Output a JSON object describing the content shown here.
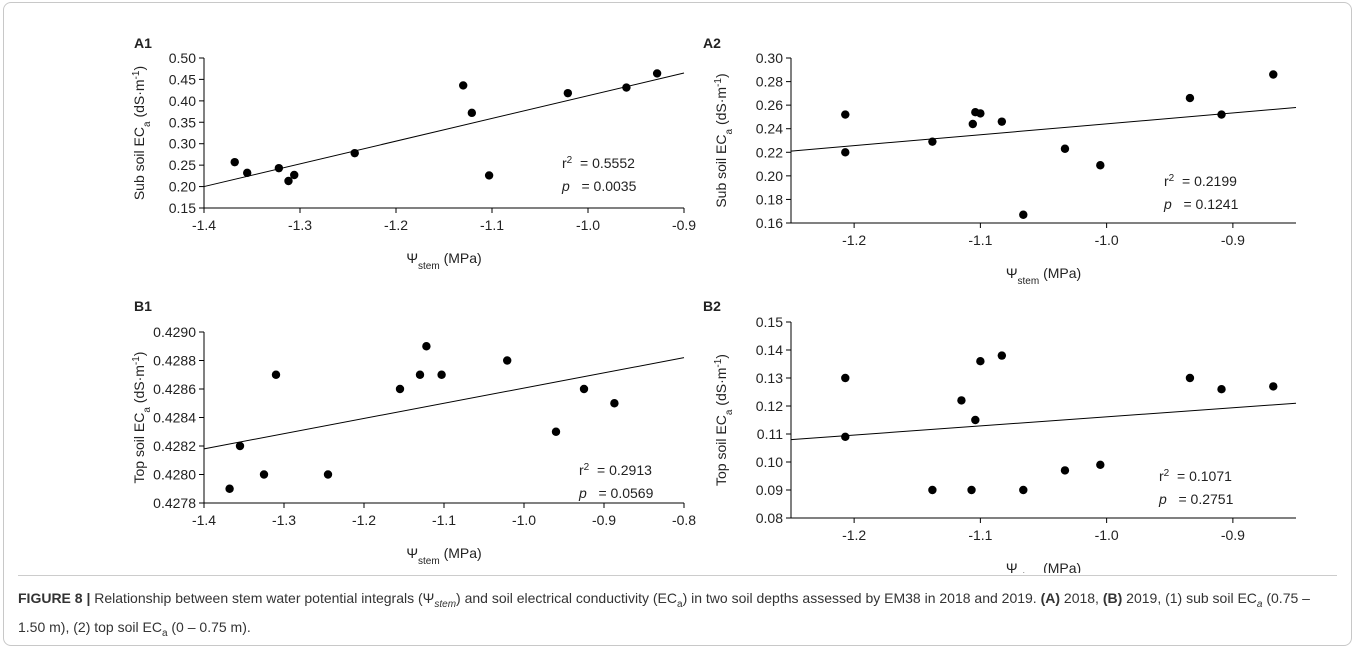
{
  "chart_data": [
    {
      "type": "scatter",
      "panel": "A1",
      "y_label": [
        {
          "text": "Sub soil EC"
        },
        {
          "text": "a",
          "shift": "sub"
        },
        {
          "text": " (dS·m"
        },
        {
          "text": "-1",
          "shift": "super"
        },
        {
          "text": ")"
        }
      ],
      "x_label": [
        {
          "text": "Ψ"
        },
        {
          "text": "stem",
          "shift": "sub"
        },
        {
          "text": " (MPa)"
        }
      ],
      "annotation": [
        [
          {
            "text": "r"
          },
          {
            "text": "2",
            "shift": "super"
          },
          {
            "text": "  = 0.5552"
          }
        ],
        [
          {
            "text": "p",
            "italic": true
          },
          {
            "text": "   = 0.0035"
          }
        ]
      ],
      "x": [
        -1.368,
        -1.355,
        -1.322,
        -1.312,
        -1.306,
        -1.243,
        -1.13,
        -1.121,
        -1.103,
        -1.021,
        -0.96,
        -0.928
      ],
      "values": [
        0.257,
        0.232,
        0.243,
        0.213,
        0.227,
        0.278,
        0.436,
        0.372,
        0.226,
        0.418,
        0.431,
        0.464
      ],
      "fit": {
        "x": [
          -1.4,
          -0.9
        ],
        "values": [
          0.2,
          0.465
        ]
      },
      "color": "#000000",
      "xlim": [
        -1.4,
        -0.9
      ],
      "xticks": [
        -1.4,
        -1.3,
        -1.2,
        -1.1,
        {
          "value": -1,
          "label": "-1.0"
        },
        -0.9
      ],
      "ylim": [
        0.15,
        0.5
      ],
      "yticks": [
        0.15,
        {
          "value": 0.2,
          "label": "0.20"
        },
        0.25,
        {
          "value": 0.3,
          "label": "0.30"
        },
        0.35,
        {
          "value": 0.4,
          "label": "0.40"
        },
        0.45,
        {
          "value": 0.5,
          "label": "0.50"
        }
      ]
    },
    {
      "type": "scatter",
      "panel": "A2",
      "y_label": [
        {
          "text": "Sub soil EC"
        },
        {
          "text": "a",
          "shift": "sub"
        },
        {
          "text": " (dS·m"
        },
        {
          "text": "-1",
          "shift": "super"
        },
        {
          "text": ")"
        }
      ],
      "x_label": [
        {
          "text": "Ψ"
        },
        {
          "text": "stem",
          "shift": "sub"
        },
        {
          "text": " (MPa)"
        }
      ],
      "annotation": [
        [
          {
            "text": "r"
          },
          {
            "text": "2",
            "shift": "super"
          },
          {
            "text": "  = 0.2199"
          }
        ],
        [
          {
            "text": "p",
            "italic": true
          },
          {
            "text": "   = 0.1241"
          }
        ]
      ],
      "x": [
        -1.207,
        -1.207,
        -1.138,
        -1.106,
        -1.104,
        -1.1,
        -1.083,
        -1.066,
        -1.033,
        -1.005,
        -0.934,
        -0.909,
        -0.868
      ],
      "values": [
        0.252,
        0.22,
        0.229,
        0.244,
        0.254,
        0.253,
        0.246,
        0.167,
        0.223,
        0.209,
        0.266,
        0.252,
        0.286
      ],
      "fit": {
        "x": [
          -1.25,
          -0.85
        ],
        "values": [
          0.221,
          0.258
        ]
      },
      "color": "#000000",
      "xlim": [
        -1.25,
        -0.85
      ],
      "xticks": [
        -1.2,
        -1.1,
        {
          "value": -1,
          "label": "-1.0"
        },
        -0.9
      ],
      "ylim": [
        0.16,
        0.3
      ],
      "yticks": [
        0.16,
        0.18,
        {
          "value": 0.2,
          "label": "0.20"
        },
        0.22,
        0.24,
        0.26,
        0.28,
        {
          "value": 0.3,
          "label": "0.30"
        }
      ]
    },
    {
      "type": "scatter",
      "panel": "B1",
      "y_label": [
        {
          "text": "Top soil EC"
        },
        {
          "text": "a",
          "shift": "sub"
        },
        {
          "text": " (dS·m"
        },
        {
          "text": "-1",
          "shift": "super"
        },
        {
          "text": ")"
        }
      ],
      "x_label": [
        {
          "text": "Ψ"
        },
        {
          "text": "stem",
          "shift": "sub"
        },
        {
          "text": " (MPa)"
        }
      ],
      "annotation": [
        [
          {
            "text": "r"
          },
          {
            "text": "2",
            "shift": "super"
          },
          {
            "text": "  = 0.2913"
          }
        ],
        [
          {
            "text": "p",
            "italic": true
          },
          {
            "text": "   = 0.0569"
          }
        ]
      ],
      "x": [
        -1.368,
        -1.355,
        -1.325,
        -1.31,
        -1.245,
        -1.155,
        -1.13,
        -1.122,
        -1.103,
        -1.021,
        -0.96,
        -0.925,
        -0.887
      ],
      "values": [
        0.4279,
        0.4282,
        0.428,
        0.4287,
        0.428,
        0.4286,
        0.4287,
        0.4289,
        0.4287,
        0.4288,
        0.4283,
        0.4286,
        0.4285
      ],
      "fit": {
        "x": [
          -1.4,
          -0.8
        ],
        "values": [
          0.42818,
          0.42882
        ]
      },
      "color": "#000000",
      "xlim": [
        -1.4,
        -0.8
      ],
      "xticks": [
        -1.4,
        -1.3,
        -1.2,
        -1.1,
        {
          "value": -1,
          "label": "-1.0"
        },
        -0.9,
        -0.8
      ],
      "ylim": [
        0.4278,
        0.429
      ],
      "yticks": [
        0.4278,
        {
          "value": 0.428,
          "label": "0.4280"
        },
        0.4282,
        0.4284,
        0.4286,
        0.4288,
        {
          "value": 0.429,
          "label": "0.4290"
        }
      ]
    },
    {
      "type": "scatter",
      "panel": "B2",
      "y_label": [
        {
          "text": "Top soil EC"
        },
        {
          "text": "a",
          "shift": "sub"
        },
        {
          "text": " (dS·m"
        },
        {
          "text": "-1",
          "shift": "super"
        },
        {
          "text": ")"
        }
      ],
      "x_label": [
        {
          "text": "Ψ"
        },
        {
          "text": "stem",
          "shift": "sub"
        },
        {
          "text": " (MPa)"
        }
      ],
      "annotation": [
        [
          {
            "text": "r"
          },
          {
            "text": "2",
            "shift": "super"
          },
          {
            "text": "  = 0.1071"
          }
        ],
        [
          {
            "text": "p",
            "italic": true
          },
          {
            "text": "   = 0.2751"
          }
        ]
      ],
      "x": [
        -1.207,
        -1.207,
        -1.138,
        -1.115,
        -1.107,
        -1.104,
        -1.1,
        -1.083,
        -1.066,
        -1.033,
        -1.005,
        -0.934,
        -0.909,
        -0.868
      ],
      "values": [
        0.13,
        0.109,
        0.09,
        0.122,
        0.09,
        0.115,
        0.136,
        0.138,
        0.09,
        0.097,
        0.099,
        0.13,
        0.126,
        0.127
      ],
      "fit": {
        "x": [
          -1.25,
          -0.85
        ],
        "values": [
          0.108,
          0.121
        ]
      },
      "color": "#000000",
      "xlim": [
        -1.25,
        -0.85
      ],
      "xticks": [
        -1.2,
        -1.1,
        {
          "value": -1,
          "label": "-1.0"
        },
        -0.9
      ],
      "ylim": [
        0.08,
        0.15
      ],
      "yticks": [
        {
          "value": 0.08,
          "label": "0.08"
        },
        {
          "value": 0.09,
          "label": "0.09"
        },
        {
          "value": 0.1,
          "label": "0.10"
        },
        0.11,
        0.12,
        0.13,
        0.14,
        0.15
      ]
    }
  ],
  "caption": [
    {
      "text": "FIGURE 8 |",
      "bold": true
    },
    {
      "text": " Relationship between stem water potential integrals (Ψ"
    },
    {
      "text": "stem",
      "italic": true,
      "shift": "sub"
    },
    {
      "text": ") and soil electrical conductivity (EC"
    },
    {
      "text": "a",
      "shift": "sub"
    },
    {
      "text": ") in two soil depths assessed by EM38 in 2018 and 2019. "
    },
    {
      "text": "(A)",
      "bold": true
    },
    {
      "text": " 2018, "
    },
    {
      "text": "(B)",
      "bold": true
    },
    {
      "text": " 2019, (1) sub soil EC"
    },
    {
      "text": "a",
      "italic": true,
      "shift": "sub"
    },
    {
      "text": " (0.75 – 1.50 m), (2) top soil EC"
    },
    {
      "text": "a",
      "shift": "sub"
    },
    {
      "text": " (0 – 0.75 m)."
    }
  ]
}
